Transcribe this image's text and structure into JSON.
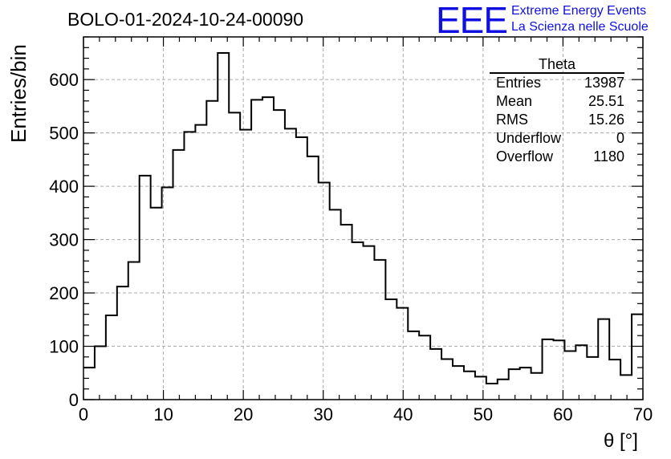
{
  "header": {
    "title": "BOLO-01-2024-10-24-00090",
    "logo_letters": "EEE",
    "logo_line1": "Extreme Energy Events",
    "logo_line2": "La Scienza nelle Scuole"
  },
  "stats": {
    "name": "Theta",
    "rows": [
      {
        "label": "Entries",
        "value": "13987"
      },
      {
        "label": "Mean",
        "value": "25.51"
      },
      {
        "label": "RMS",
        "value": "15.26"
      },
      {
        "label": "Underflow",
        "value": "0"
      },
      {
        "label": "Overflow",
        "value": "1180"
      }
    ]
  },
  "colors": {
    "line": "#000000",
    "logo": "#1010e0",
    "grid": "#aaaaaa"
  },
  "chart_data": {
    "type": "histogram",
    "xlabel": "θ [°]",
    "ylabel": "Entries/bin",
    "xlim": [
      0,
      70
    ],
    "ylim": [
      0,
      680
    ],
    "grid": true,
    "x_ticks": [
      0,
      10,
      20,
      30,
      40,
      50,
      60,
      70
    ],
    "y_ticks": [
      0,
      100,
      200,
      300,
      400,
      500,
      600
    ],
    "bin_width": 1.4,
    "values": [
      60,
      100,
      158,
      212,
      258,
      420,
      360,
      398,
      468,
      502,
      515,
      560,
      650,
      538,
      506,
      562,
      567,
      543,
      508,
      492,
      456,
      407,
      356,
      328,
      295,
      288,
      262,
      188,
      172,
      128,
      120,
      95,
      76,
      63,
      53,
      43,
      30,
      38,
      57,
      60,
      50,
      113,
      111,
      91,
      102,
      80,
      151,
      75,
      46,
      160
    ]
  }
}
